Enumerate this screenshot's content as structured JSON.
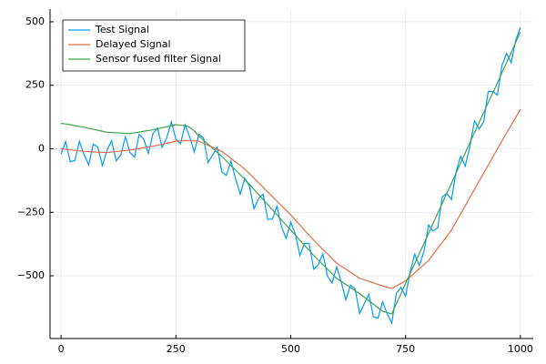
{
  "chart_data": {
    "type": "line",
    "x": [
      0,
      10,
      20,
      30,
      40,
      50,
      60,
      70,
      80,
      90,
      100,
      110,
      120,
      130,
      140,
      150,
      160,
      170,
      180,
      190,
      200,
      210,
      220,
      230,
      240,
      250,
      260,
      270,
      280,
      290,
      300,
      310,
      320,
      330,
      340,
      350,
      360,
      370,
      380,
      390,
      400,
      410,
      420,
      430,
      440,
      450,
      460,
      470,
      480,
      490,
      500,
      510,
      520,
      530,
      540,
      550,
      560,
      570,
      580,
      590,
      600,
      610,
      620,
      630,
      640,
      650,
      660,
      670,
      680,
      690,
      700,
      710,
      720,
      730,
      740,
      750,
      760,
      770,
      780,
      790,
      800,
      810,
      820,
      830,
      840,
      850,
      860,
      870,
      880,
      890,
      900,
      910,
      920,
      930,
      940,
      950,
      960,
      970,
      980,
      990,
      1000
    ],
    "series": [
      {
        "name": "Test Signal",
        "color": "#009af9",
        "values": [
          -20,
          28,
          -51,
          -46,
          30,
          -23,
          -63,
          18,
          7,
          -66,
          -6,
          32,
          -47,
          -25,
          47,
          -14,
          -33,
          57,
          38,
          -18,
          59,
          82,
          5,
          43,
          106,
          38,
          20,
          94,
          47,
          -13,
          57,
          43,
          -54,
          -24,
          6,
          -91,
          -105,
          -48,
          -119,
          -178,
          -116,
          -146,
          -236,
          -195,
          -179,
          -278,
          -277,
          -226,
          -308,
          -353,
          -289,
          -336,
          -420,
          -372,
          -373,
          -474,
          -456,
          -413,
          -501,
          -529,
          -465,
          -524,
          -595,
          -537,
          -551,
          -648,
          -610,
          -573,
          -661,
          -667,
          -602,
          -650,
          -686,
          -569,
          -545,
          -580,
          -485,
          -415,
          -460,
          -405,
          -300,
          -324,
          -311,
          -189,
          -176,
          -200,
          -90,
          -29,
          -68,
          9,
          110,
          78,
          106,
          226,
          225,
          212,
          329,
          375,
          339,
          428,
          478
        ]
      },
      {
        "name": "Delayed Signal",
        "color": "#e26f46",
        "values": [
          0,
          -2,
          -4,
          -6,
          -8,
          -10,
          -11,
          -12,
          -13,
          -14,
          -15,
          -13,
          -11,
          -9,
          -7,
          -5,
          -2,
          1,
          4,
          7,
          10,
          14,
          18,
          22,
          26,
          30,
          31,
          32,
          32,
          31,
          30,
          22,
          14,
          6,
          -2,
          -10,
          -24,
          -38,
          -52,
          -66,
          -80,
          -98,
          -116,
          -134,
          -152,
          -170,
          -188,
          -206,
          -224,
          -242,
          -260,
          -280,
          -300,
          -320,
          -340,
          -360,
          -378,
          -396,
          -414,
          -432,
          -450,
          -462,
          -474,
          -486,
          -498,
          -510,
          -516,
          -522,
          -528,
          -534,
          -540,
          -545,
          -550,
          -540,
          -530,
          -520,
          -504,
          -488,
          -472,
          -456,
          -440,
          -416,
          -392,
          -368,
          -344,
          -320,
          -288,
          -256,
          -224,
          -192,
          -160,
          -128,
          -96,
          -64,
          -32,
          0,
          31,
          62,
          93,
          124,
          155
        ]
      },
      {
        "name": "Sensor fused filter Signal",
        "color": "#3da44d",
        "values": [
          100,
          98,
          95,
          91,
          88,
          85,
          81,
          77,
          73,
          69,
          65,
          64,
          63,
          62,
          61,
          60,
          63,
          66,
          69,
          72,
          75,
          79,
          83,
          87,
          91,
          95,
          93,
          91,
          85,
          70,
          50,
          34,
          18,
          2,
          -14,
          -30,
          -48,
          -66,
          -84,
          -102,
          -120,
          -140,
          -160,
          -180,
          -200,
          -220,
          -240,
          -260,
          -280,
          -300,
          -320,
          -340,
          -360,
          -380,
          -400,
          -420,
          -438,
          -456,
          -474,
          -492,
          -510,
          -522,
          -534,
          -546,
          -558,
          -570,
          -584,
          -598,
          -612,
          -626,
          -640,
          -645,
          -650,
          -610,
          -570,
          -530,
          -491,
          -452,
          -412,
          -373,
          -333,
          -293,
          -254,
          -214,
          -174,
          -135,
          -95,
          -56,
          -16,
          24,
          63,
          103,
          142,
          182,
          221,
          260,
          300,
          340,
          380,
          420,
          460
        ]
      }
    ],
    "xlim": [
      -24,
      1028
    ],
    "ylim": [
      -747,
      550
    ],
    "xticks": [
      0,
      250,
      500,
      750,
      1000
    ],
    "yticks": [
      {
        "value": -500,
        "label": "−500"
      },
      {
        "value": -250,
        "label": "−250"
      },
      0,
      250,
      500
    ],
    "grid": true,
    "legend": "top-left"
  }
}
